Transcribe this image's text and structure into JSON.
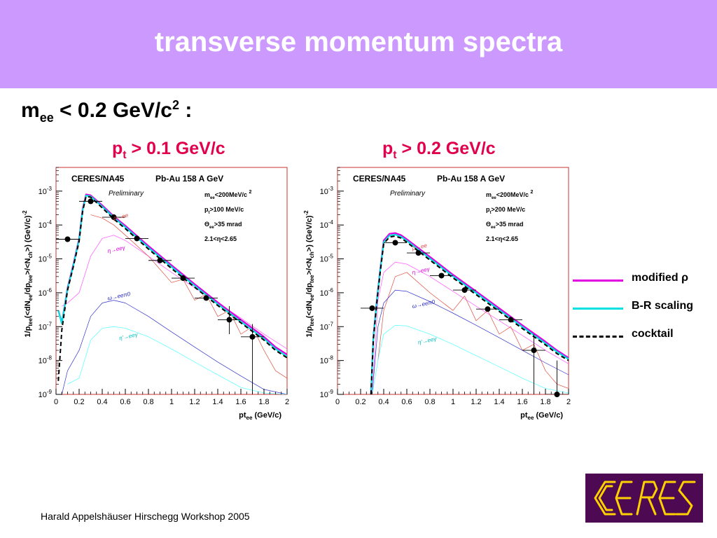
{
  "title": "transverse momentum spectra",
  "cut_label": {
    "m": "m",
    "sub": "ee",
    "text": " < 0.2 GeV/c",
    "sup": "2",
    "tail": " :"
  },
  "panels": [
    {
      "label": {
        "p": "p",
        "sub": "t",
        "text": " > 0.1 GeV/c"
      }
    },
    {
      "label": {
        "p": "p",
        "sub": "t",
        "text": " > 0.2 GeV/c"
      }
    }
  ],
  "legend": [
    {
      "label": "modified ρ",
      "color": "#e000e0",
      "style": "solid"
    },
    {
      "label": "B-R scaling",
      "color": "#00e0e0",
      "style": "solid"
    },
    {
      "label": "cocktail",
      "color": "#000000",
      "style": "dashed"
    }
  ],
  "footer": "Harald Appelshäuser  Hirschegg Workshop 2005",
  "logo_text": "CERES",
  "colors": {
    "banner": "#cc99ff",
    "accent": "#e0004d",
    "logo_bg": "#4d0a52",
    "logo_fg": "#ffd000"
  },
  "chart_data": [
    {
      "type": "scatter",
      "experiment": "CERES/NA45",
      "system": "Pb-Au 158 A GeV",
      "preliminary": "Preliminary",
      "cuts": [
        "m_ee<200MeV/c 2",
        "p_t>100 MeV/c",
        "Θ_ee>35 mrad",
        "2.1<η<2.65"
      ],
      "cuts_display": [
        {
          "a": "m",
          "s": "ee",
          "b": "<200MeV/c ",
          "sup": "2"
        },
        {
          "a": "p",
          "s": "t",
          "b": ">100 MeV/c",
          "sup": ""
        },
        {
          "a": "Θ",
          "s": "ee",
          "b": ">35 mrad",
          "sup": ""
        },
        {
          "a": "2.1<",
          "s": "",
          "b": "η<2.65",
          "sup": ""
        }
      ],
      "ylabel": "1/p_tee(<dN_ee/dp_tee>/<N_ch>) (GeV/c)^-2",
      "xlabel": "pt_ee (GeV/c)",
      "xlim": [
        0,
        2
      ],
      "ylim": [
        1e-09,
        0.005
      ],
      "yscale": "log",
      "xticks": [
        "0",
        "0.2",
        "0.4",
        "0.6",
        "0.8",
        "1",
        "1.2",
        "1.4",
        "1.6",
        "1.8",
        "2"
      ],
      "yticks": [
        {
          "v": 1e-09,
          "m": "10",
          "e": "-9"
        },
        {
          "v": 1e-08,
          "m": "10",
          "e": "-8"
        },
        {
          "v": 1e-07,
          "m": "10",
          "e": "-7"
        },
        {
          "v": 1e-06,
          "m": "10",
          "e": "-6"
        },
        {
          "v": 1e-05,
          "m": "10",
          "e": "-5"
        },
        {
          "v": 0.0001,
          "m": "10",
          "e": "-4"
        },
        {
          "v": 0.001,
          "m": "10",
          "e": "-3"
        }
      ],
      "points": [
        {
          "x": 0.1,
          "y": 3.8e-05,
          "xerr": 0.1
        },
        {
          "x": 0.3,
          "y": 0.0005,
          "xerr": 0.1
        },
        {
          "x": 0.5,
          "y": 0.00017,
          "xerr": 0.1
        },
        {
          "x": 0.7,
          "y": 4e-05,
          "xerr": 0.1
        },
        {
          "x": 0.9,
          "y": 9e-06,
          "xerr": 0.1
        },
        {
          "x": 1.1,
          "y": 2.7e-06,
          "xerr": 0.1
        },
        {
          "x": 1.3,
          "y": 7e-07,
          "xerr": 0.1
        },
        {
          "x": 1.5,
          "y": 1.6e-07,
          "xerr": 0.1,
          "yerr": [
            6e-08,
            4e-07
          ]
        },
        {
          "x": 1.7,
          "y": 5e-08,
          "xerr": 0.1,
          "yerr": [
            1e-09,
            1.2e-07
          ]
        }
      ],
      "component_labels": [
        {
          "text": "ρ→ee",
          "color": "#e04040",
          "x": 0.5,
          "y": 0.00014
        },
        {
          "text": "η→eeγ",
          "color": "#e000e0",
          "x": 0.45,
          "y": 1.5e-05
        },
        {
          "text": "ω→eeπ0",
          "color": "#2020c0",
          "x": 0.45,
          "y": 6e-07
        },
        {
          "text": "η'→eeγ",
          "color": "#00c0c0",
          "x": 0.55,
          "y": 4e-08
        }
      ],
      "curves": {
        "modified_rho": {
          "x": [
            0.02,
            0.05,
            0.1,
            0.15,
            0.2,
            0.23,
            0.26,
            0.3,
            0.4,
            0.5,
            0.6,
            0.8,
            1.0,
            1.2,
            1.4,
            1.6,
            1.8,
            1.9,
            2.0
          ],
          "y": [
            3e-07,
            1.3e-07,
            1.4e-06,
            7e-06,
            4e-05,
            0.0003,
            0.0008,
            0.00075,
            0.00038,
            0.00018,
            9.5e-05,
            2.4e-05,
            6.5e-06,
            1.8e-06,
            5.2e-07,
            1.6e-07,
            5e-08,
            2.5e-08,
            1.5e-08
          ]
        },
        "br_scaling": {
          "x": [
            0.02,
            0.05,
            0.1,
            0.15,
            0.2,
            0.23,
            0.26,
            0.3,
            0.4,
            0.5,
            0.6,
            0.8,
            1.0,
            1.2,
            1.4,
            1.6,
            1.8,
            1.9,
            2.0
          ],
          "y": [
            3e-07,
            1.25e-07,
            1.3e-06,
            6.5e-06,
            3.6e-05,
            0.00027,
            0.00074,
            0.0007,
            0.00035,
            0.000165,
            8.6e-05,
            2.15e-05,
            5.8e-06,
            1.6e-06,
            4.6e-07,
            1.4e-07,
            4.4e-08,
            2.2e-08,
            1.3e-08
          ]
        },
        "cocktail": {
          "x": [
            0.02,
            0.05,
            0.1,
            0.15,
            0.2,
            0.23,
            0.26,
            0.3,
            0.4,
            0.5,
            0.6,
            0.8,
            1.0,
            1.2,
            1.4,
            1.6,
            1.8,
            1.9,
            2.0
          ],
          "y": [
            2.5e-09,
            8e-08,
            1.2e-06,
            6e-06,
            3.3e-05,
            0.00025,
            0.0007,
            0.00066,
            0.00032,
            0.00015,
            7.8e-05,
            1.95e-05,
            5.2e-06,
            1.45e-06,
            4.2e-07,
            1.3e-07,
            4e-08,
            2e-08,
            1.2e-08
          ]
        },
        "eta_dalitz": {
          "x": [
            0.05,
            0.1,
            0.2,
            0.3,
            0.4,
            0.5,
            0.6,
            0.8,
            1.0,
            1.2,
            1.4,
            1.6,
            1.8,
            2.0
          ],
          "y": [
            4e-07,
            5e-07,
            1e-06,
            1.2e-05,
            4e-05,
            5e-05,
            3.5e-05,
            1.2e-05,
            4e-06,
            1.4e-06,
            5e-07,
            1.8e-07,
            6e-08,
            2.2e-08
          ]
        },
        "rho_ee": {
          "x": [
            0.3,
            0.4,
            0.5,
            0.6,
            0.8,
            1.0,
            1.1,
            1.2,
            1.3,
            1.4,
            1.5,
            1.6,
            1.7,
            1.8,
            1.9,
            2.0
          ],
          "y": [
            0.0002,
            0.00016,
            0.0001,
            5e-05,
            1.2e-05,
            2e-06,
            2.5e-06,
            6e-07,
            9e-07,
            2e-07,
            3e-07,
            6e-08,
            1e-07,
            2e-08,
            5e-09,
            3e-09
          ]
        },
        "omega_dalitz": {
          "x": [
            0.05,
            0.1,
            0.2,
            0.3,
            0.4,
            0.5,
            0.6,
            0.8,
            1.0,
            1.2,
            1.4,
            1.6,
            1.8,
            2.0
          ],
          "y": [
            1e-09,
            5e-09,
            2e-08,
            2e-07,
            5e-07,
            6e-07,
            5e-07,
            2e-07,
            7e-08,
            2.5e-08,
            9e-09,
            3.5e-09,
            1.4e-09,
            6e-10
          ]
        },
        "etap_dalitz": {
          "x": [
            0.1,
            0.2,
            0.3,
            0.4,
            0.5,
            0.6,
            0.8,
            1.0,
            1.2,
            1.4,
            1.6,
            1.8,
            2.0
          ],
          "y": [
            2e-09,
            3e-09,
            4e-08,
            9e-08,
            1e-07,
            9e-08,
            5e-08,
            2.2e-08,
            9e-09,
            3.8e-09,
            1.6e-09,
            1.1e-09,
            1e-09
          ]
        }
      }
    },
    {
      "type": "scatter",
      "experiment": "CERES/NA45",
      "system": "Pb-Au 158 A GeV",
      "preliminary": "Preliminary",
      "cuts": [
        "m_ee<200MeV/c 2",
        "p_t>200 MeV/c",
        "Θ_ee>35 mrad",
        "2.1<η<2.65"
      ],
      "cuts_display": [
        {
          "a": "m",
          "s": "ee",
          "b": "<200MeV/c ",
          "sup": "2"
        },
        {
          "a": "p",
          "s": "t",
          "b": ">200 MeV/c",
          "sup": ""
        },
        {
          "a": "Θ",
          "s": "ee",
          "b": ">35 mrad",
          "sup": ""
        },
        {
          "a": "2.1<",
          "s": "",
          "b": "η<2.65",
          "sup": ""
        }
      ],
      "ylabel": "1/p_tee(<dN_ee/dp_tee>/<N_ch>) (GeV/c)^-2",
      "xlabel": "pt_ee (GeV/c)",
      "xlim": [
        0,
        2
      ],
      "ylim": [
        1e-09,
        0.005
      ],
      "yscale": "log",
      "xticks": [
        "0",
        "0.2",
        "0.4",
        "0.6",
        "0.8",
        "1",
        "1.2",
        "1.4",
        "1.6",
        "1.8",
        "2"
      ],
      "yticks": [
        {
          "v": 1e-09,
          "m": "10",
          "e": "-9"
        },
        {
          "v": 1e-08,
          "m": "10",
          "e": "-8"
        },
        {
          "v": 1e-07,
          "m": "10",
          "e": "-7"
        },
        {
          "v": 1e-06,
          "m": "10",
          "e": "-6"
        },
        {
          "v": 1e-05,
          "m": "10",
          "e": "-5"
        },
        {
          "v": 0.0001,
          "m": "10",
          "e": "-4"
        },
        {
          "v": 0.001,
          "m": "10",
          "e": "-3"
        }
      ],
      "points": [
        {
          "x": 0.3,
          "y": 3.5e-07,
          "xerr": 0.1
        },
        {
          "x": 0.5,
          "y": 3e-05,
          "xerr": 0.1
        },
        {
          "x": 0.7,
          "y": 1.5e-05,
          "xerr": 0.1
        },
        {
          "x": 0.9,
          "y": 3.2e-06,
          "xerr": 0.1
        },
        {
          "x": 1.1,
          "y": 1.2e-06,
          "xerr": 0.1
        },
        {
          "x": 1.3,
          "y": 3.3e-07,
          "xerr": 0.1
        },
        {
          "x": 1.5,
          "y": 1.6e-07,
          "xerr": 0.1
        },
        {
          "x": 1.7,
          "y": 2e-08,
          "xerr": 0.1,
          "yerr": [
            1e-09,
            6e-08
          ]
        },
        {
          "x": 1.9,
          "y": 1e-09,
          "xerr": 0.1,
          "yerr": [
            1e-09,
            1e-08
          ]
        }
      ],
      "component_labels": [
        {
          "text": "ρ→ee",
          "color": "#e04040",
          "x": 0.65,
          "y": 1.8e-05
        },
        {
          "text": "η→eeγ",
          "color": "#e000e0",
          "x": 0.65,
          "y": 3.5e-06
        },
        {
          "text": "ω→eeπ0",
          "color": "#2020c0",
          "x": 0.65,
          "y": 3.5e-07
        },
        {
          "text": "η'→eeγ",
          "color": "#00c0c0",
          "x": 0.7,
          "y": 3e-08
        }
      ],
      "curves": {
        "modified_rho": {
          "x": [
            0.29,
            0.31,
            0.34,
            0.37,
            0.4,
            0.45,
            0.5,
            0.55,
            0.6,
            0.8,
            1.0,
            1.2,
            1.4,
            1.6,
            1.8,
            1.9,
            2.0
          ],
          "y": [
            1e-09,
            5e-08,
            6e-07,
            5e-06,
            3.5e-05,
            5.5e-05,
            5.8e-05,
            5e-05,
            3.8e-05,
            1.15e-05,
            3.4e-06,
            1.1e-06,
            3.5e-07,
            1.1e-07,
            3.6e-08,
            2e-08,
            1.2e-08
          ]
        },
        "br_scaling": {
          "x": [
            0.29,
            0.31,
            0.34,
            0.37,
            0.4,
            0.45,
            0.5,
            0.55,
            0.6,
            0.8,
            1.0,
            1.2,
            1.4,
            1.6,
            1.8,
            1.9,
            2.0
          ],
          "y": [
            1e-09,
            4.5e-08,
            5.5e-07,
            4.5e-06,
            3.1e-05,
            4.9e-05,
            5.2e-05,
            4.5e-05,
            3.4e-05,
            1.02e-05,
            3.05e-06,
            9.8e-07,
            3.1e-07,
            9.8e-08,
            3.2e-08,
            1.8e-08,
            1.1e-08
          ]
        },
        "cocktail": {
          "x": [
            0.29,
            0.31,
            0.34,
            0.37,
            0.4,
            0.45,
            0.5,
            0.55,
            0.6,
            0.8,
            1.0,
            1.2,
            1.4,
            1.6,
            1.8,
            1.9,
            2.0
          ],
          "y": [
            1e-09,
            4e-08,
            5e-07,
            4e-06,
            2.8e-05,
            4.4e-05,
            4.7e-05,
            4.1e-05,
            3.1e-05,
            9.2e-06,
            2.75e-06,
            8.8e-07,
            2.8e-07,
            8.8e-08,
            2.9e-08,
            1.6e-08,
            1e-08
          ]
        },
        "eta_dalitz": {
          "x": [
            0.3,
            0.35,
            0.4,
            0.5,
            0.6,
            0.8,
            1.0,
            1.2,
            1.4,
            1.6,
            1.8,
            2.0
          ],
          "y": [
            1e-09,
            6e-07,
            4e-06,
            8e-06,
            7e-06,
            3e-06,
            1.1e-06,
            4e-07,
            1.5e-07,
            5.5e-08,
            2e-08,
            8e-09
          ]
        },
        "rho_ee": {
          "x": [
            0.35,
            0.4,
            0.5,
            0.6,
            0.8,
            1.0,
            1.1,
            1.2,
            1.3,
            1.4,
            1.5,
            1.6,
            1.7,
            1.8,
            1.9,
            2.0
          ],
          "y": [
            1e-08,
            3e-07,
            3e-06,
            4e-06,
            1e-06,
            3e-07,
            8e-07,
            1.5e-07,
            3e-07,
            6e-08,
            1e-07,
            2e-08,
            3e-08,
            5e-09,
            2e-09,
            1.5e-09
          ]
        },
        "omega_dalitz": {
          "x": [
            0.3,
            0.35,
            0.4,
            0.5,
            0.6,
            0.8,
            1.0,
            1.2,
            1.4,
            1.6,
            1.8,
            2.0
          ],
          "y": [
            1e-09,
            1e-07,
            5e-07,
            1.2e-06,
            1.1e-06,
            5.5e-07,
            2.5e-07,
            1.1e-07,
            4.7e-08,
            2e-08,
            8.5e-09,
            3.8e-09
          ]
        },
        "etap_dalitz": {
          "x": [
            0.3,
            0.35,
            0.4,
            0.5,
            0.6,
            0.8,
            1.0,
            1.2,
            1.4,
            1.6,
            1.8,
            2.0
          ],
          "y": [
            1e-09,
            1e-08,
            6e-08,
            1.1e-07,
            1.05e-07,
            6e-08,
            3e-08,
            1.4e-08,
            6.5e-09,
            3e-09,
            1.5e-09,
            1.1e-09
          ]
        }
      }
    }
  ]
}
